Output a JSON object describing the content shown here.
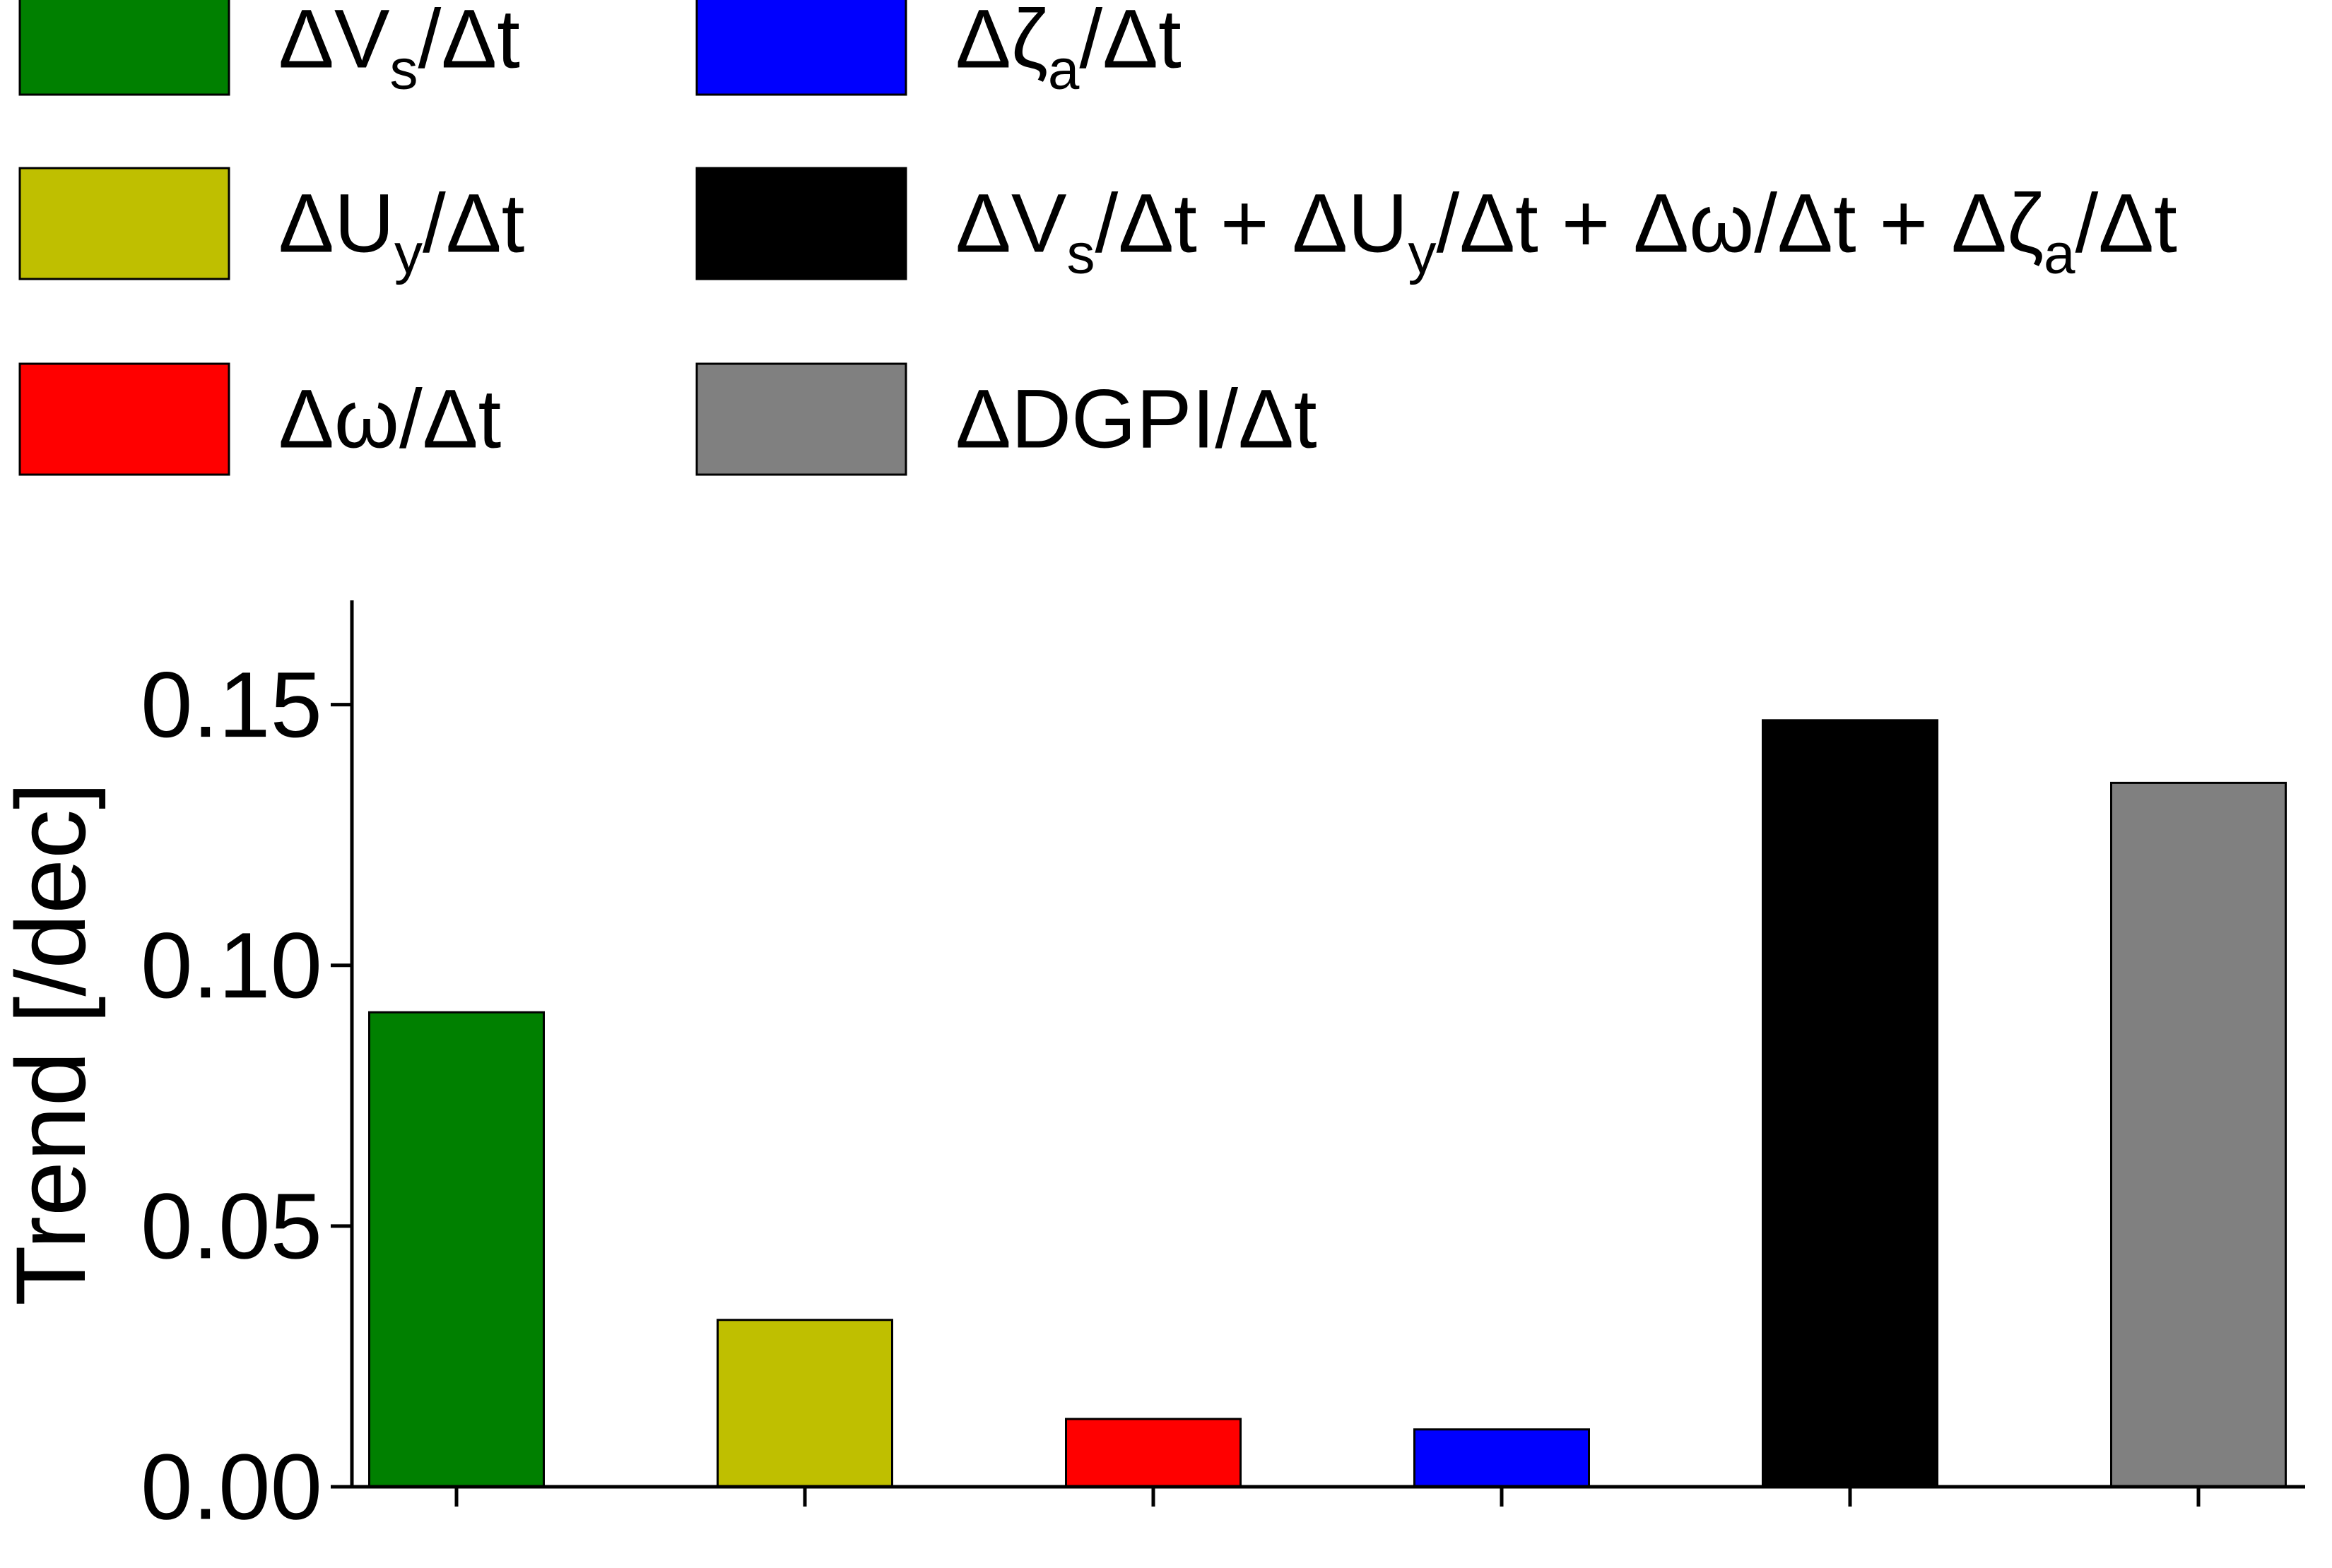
{
  "chart_data": {
    "type": "bar",
    "title": "",
    "xlabel": "",
    "ylabel": "Trend [/dec]",
    "ylim": [
      0,
      0.17
    ],
    "yticks": [
      "0.00",
      "0.05",
      "0.10",
      "0.15"
    ],
    "grid": false,
    "legend_position": "top",
    "categories": [
      "",
      "",
      "",
      "",
      "",
      ""
    ],
    "series": [
      {
        "name": "ΔVs/Δt",
        "color": "#008000",
        "values": [
          0.091,
          null,
          null,
          null,
          null,
          null
        ]
      },
      {
        "name": "ΔUy/Δt",
        "color": "#bfbf00",
        "values": [
          null,
          0.032,
          null,
          null,
          null,
          null
        ]
      },
      {
        "name": "Δω/Δt",
        "color": "#ff0000",
        "values": [
          null,
          null,
          0.013,
          null,
          null,
          null
        ]
      },
      {
        "name": "Δζa/Δt",
        "color": "#0000ff",
        "values": [
          null,
          null,
          null,
          0.011,
          null,
          null
        ]
      },
      {
        "name": "ΔVs/Δt + ΔUy/Δt + Δω/Δt + Δζa/Δt",
        "color": "#000000",
        "values": [
          null,
          null,
          null,
          null,
          0.147,
          null
        ]
      },
      {
        "name": "ΔDGPI/Δt",
        "color": "#808080",
        "values": [
          null,
          null,
          null,
          null,
          null,
          0.135
        ]
      }
    ],
    "values": [
      0.091,
      0.032,
      0.013,
      0.011,
      0.147,
      0.135
    ]
  },
  "legend": {
    "items": [
      {
        "parts": [
          [
            "Δ",
            ""
          ],
          [
            "V",
            ""
          ],
          [
            "s",
            "sub"
          ],
          [
            "/Δt",
            ""
          ]
        ]
      },
      {
        "parts": [
          [
            "Δ",
            ""
          ],
          [
            "U",
            ""
          ],
          [
            "y",
            "sub"
          ],
          [
            "/Δt",
            ""
          ]
        ]
      },
      {
        "parts": [
          [
            "Δω/Δt",
            ""
          ]
        ]
      },
      {
        "parts": [
          [
            "Δζ",
            ""
          ],
          [
            "a",
            "sub"
          ],
          [
            "/Δt",
            ""
          ]
        ]
      },
      {
        "parts": [
          [
            "ΔV",
            ""
          ],
          [
            "s",
            "sub"
          ],
          [
            "/Δt + ΔU",
            ""
          ],
          [
            "y",
            "sub"
          ],
          [
            "/Δt + Δω/Δt + Δζ",
            ""
          ],
          [
            "a",
            "sub"
          ],
          [
            "/Δt",
            ""
          ]
        ]
      },
      {
        "parts": [
          [
            "ΔDGPI/Δt",
            ""
          ]
        ]
      }
    ]
  }
}
